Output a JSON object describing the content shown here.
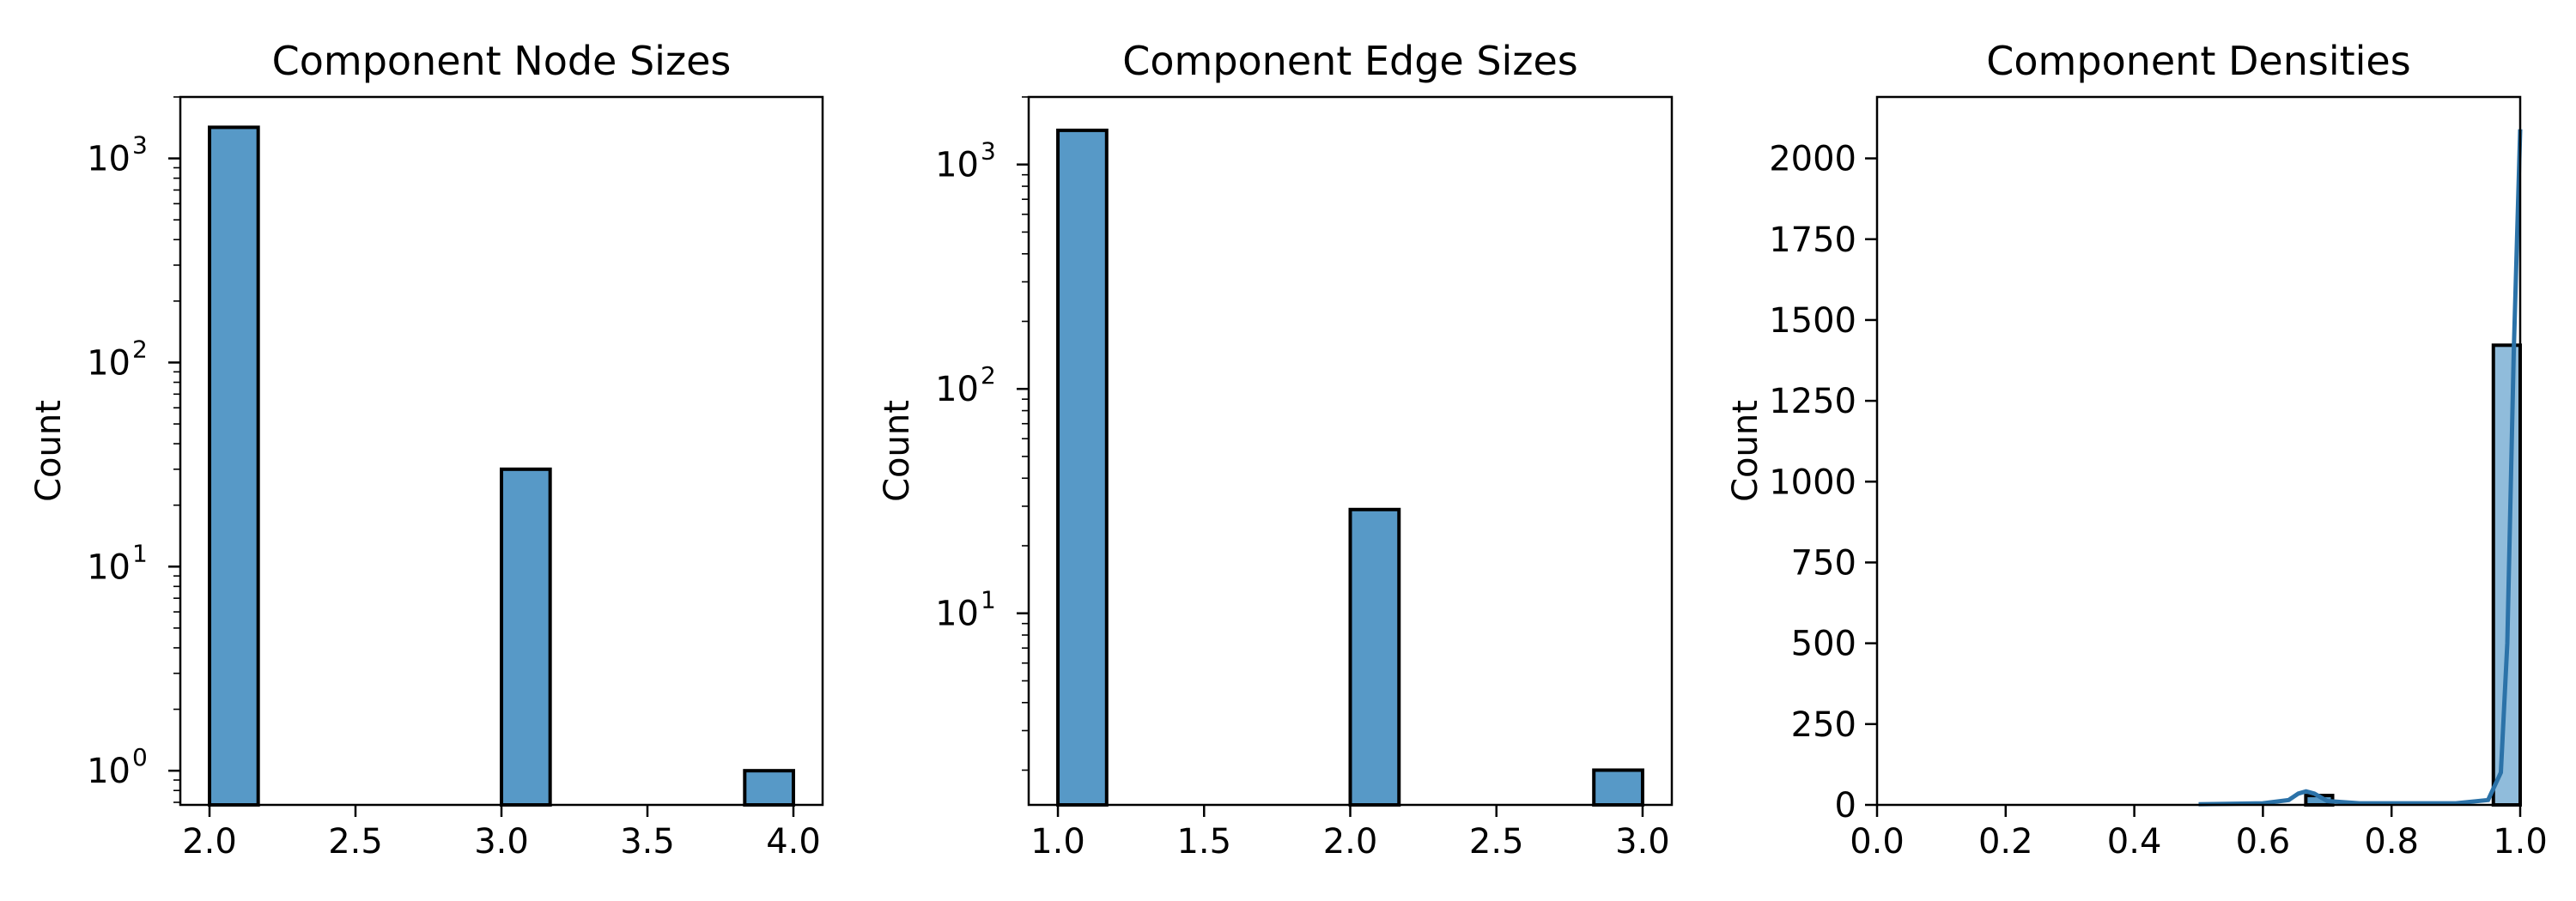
{
  "chart_data": [
    {
      "type": "bar",
      "title": "Component Node Sizes",
      "xlabel": "",
      "ylabel": "Count",
      "yscale": "log",
      "xlim": [
        1.9,
        4.1
      ],
      "ylim": [
        0.68,
        2000
      ],
      "xticks": [
        "2.0",
        "2.5",
        "3.0",
        "3.5",
        "4.0"
      ],
      "yticks": [
        {
          "base": "10",
          "exp": "0",
          "value": 1
        },
        {
          "base": "10",
          "exp": "1",
          "value": 10
        },
        {
          "base": "10",
          "exp": "2",
          "value": 100
        },
        {
          "base": "10",
          "exp": "3",
          "value": 1000
        }
      ],
      "bars": [
        {
          "x0": 2.0,
          "x1": 2.1667,
          "value": 1420
        },
        {
          "x0": 3.0,
          "x1": 3.1667,
          "value": 30
        },
        {
          "x0": 3.8333,
          "x1": 4.0,
          "value": 1
        }
      ]
    },
    {
      "type": "bar",
      "title": "Component Edge Sizes",
      "xlabel": "",
      "ylabel": "Count",
      "yscale": "log",
      "xlim": [
        0.9,
        3.1
      ],
      "ylim": [
        1.4,
        2000
      ],
      "xticks": [
        "1.0",
        "1.5",
        "2.0",
        "2.5",
        "3.0"
      ],
      "yticks": [
        {
          "base": "10",
          "exp": "1",
          "value": 10
        },
        {
          "base": "10",
          "exp": "2",
          "value": 100
        },
        {
          "base": "10",
          "exp": "3",
          "value": 1000
        }
      ],
      "bars": [
        {
          "x0": 1.0,
          "x1": 1.1667,
          "value": 1420
        },
        {
          "x0": 2.0,
          "x1": 2.1667,
          "value": 29
        },
        {
          "x0": 2.8333,
          "x1": 3.0,
          "value": 2
        }
      ]
    },
    {
      "type": "bar",
      "title": "Component Densities",
      "xlabel": "",
      "ylabel": "Count",
      "yscale": "linear",
      "xlim": [
        0.0,
        1.0
      ],
      "ylim": [
        0,
        2190
      ],
      "xticks": [
        "0.0",
        "0.2",
        "0.4",
        "0.6",
        "0.8",
        "1.0"
      ],
      "yticks": [
        "0",
        "250",
        "500",
        "750",
        "1000",
        "1250",
        "1500",
        "1750",
        "2000"
      ],
      "bars": [
        {
          "x0": 0.6667,
          "x1": 0.7083,
          "value": 29
        },
        {
          "x0": 0.9583,
          "x1": 1.0,
          "value": 1422
        }
      ],
      "kde": {
        "x": [
          0.5,
          0.6,
          0.64,
          0.655,
          0.667,
          0.68,
          0.7,
          0.75,
          0.9,
          0.95,
          0.97,
          0.98,
          0.99,
          1.0
        ],
        "y": [
          2,
          5,
          15,
          35,
          42,
          35,
          12,
          5,
          5,
          15,
          100,
          500,
          1400,
          2090
        ]
      }
    }
  ]
}
